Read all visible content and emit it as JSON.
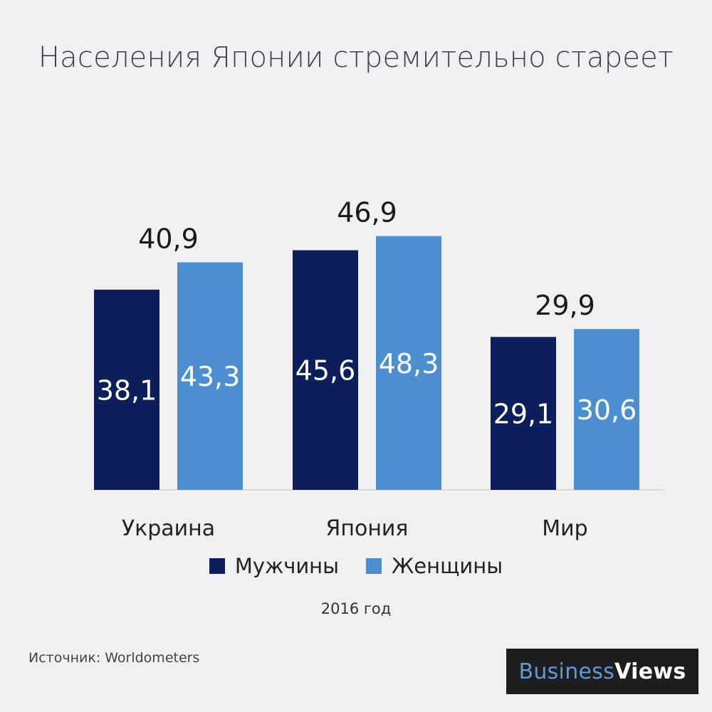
{
  "title": "Населения Японии стремительно стареет",
  "subtitle": "2016 год",
  "source": {
    "label": "Источник:",
    "value": "Worldometers"
  },
  "logo": {
    "part1": "Business",
    "part2": "Views"
  },
  "colors": {
    "men": "#0c1f5c",
    "women": "#4b8fd1",
    "background": "#f0f0f2"
  },
  "chart_data": {
    "type": "bar",
    "categories": [
      "Украина",
      "Япония",
      "Мир"
    ],
    "series": [
      {
        "name": "Мужчины",
        "values": [
          38.1,
          45.6,
          29.1
        ],
        "labels": [
          "38,1",
          "45,6",
          "29,1"
        ]
      },
      {
        "name": "Женщины",
        "values": [
          43.3,
          48.3,
          30.6
        ],
        "labels": [
          "43,3",
          "48,3",
          "30,6"
        ]
      }
    ],
    "totals": {
      "values": [
        40.9,
        46.9,
        29.9
      ],
      "labels": [
        "40,9",
        "46,9",
        "29,9"
      ]
    },
    "legend": "bottom",
    "grid": false
  }
}
